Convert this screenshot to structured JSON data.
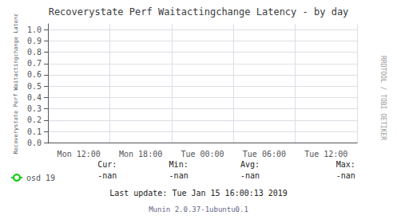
{
  "chart_data": {
    "type": "line",
    "title": "Recoverystate Perf Waitactingchange Latency - by day",
    "y_label": "Recoverystate Perf Waitactingchange Latenc",
    "categories": [
      "Mon 12:00",
      "Mon 18:00",
      "Tue 00:00",
      "Tue 06:00",
      "Tue 12:00"
    ],
    "series": [
      {
        "name": "osd 19",
        "color": "#00cc00",
        "values": [
          null,
          null,
          null,
          null,
          null
        ]
      }
    ],
    "ylim": [
      -0.005,
      1.05
    ],
    "yticks": [
      {
        "value": 0.0,
        "label": "0.0"
      },
      0.1,
      0.2,
      0.3,
      0.4,
      0.5,
      0.6,
      0.7,
      0.8,
      0.9,
      {
        "value": 1.0,
        "label": "1.0"
      }
    ],
    "grid": true,
    "legend": "lower left",
    "annotations": [
      "RRDTOOL / TOBI OETIKER",
      "Cur:",
      "-nan",
      "Min:",
      "-nan",
      "Avg:",
      "-nan",
      "Max:",
      "-nan",
      "Last update: Tue Jan 15 16:00:13 2019",
      "Munin 2.0.37-1ubuntu0.1"
    ]
  }
}
